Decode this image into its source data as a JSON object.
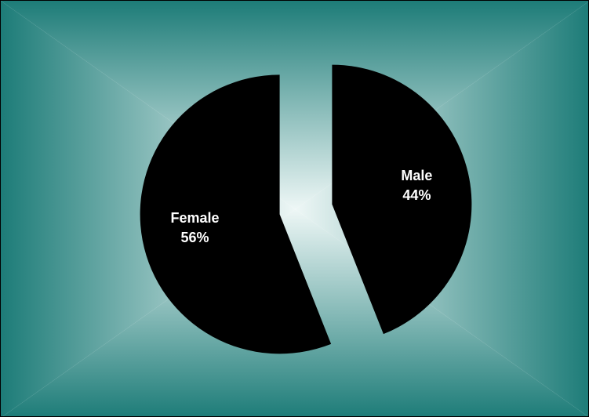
{
  "chart_data": {
    "type": "pie",
    "exploded": true,
    "start": "12 o'clock",
    "direction": "clockwise",
    "slices": [
      {
        "label": "Male",
        "value": 44,
        "value_label": "44%",
        "color": "#000000"
      },
      {
        "label": "Female",
        "value": 56,
        "value_label": "56%",
        "color": "#000000"
      }
    ],
    "label_color": "#ffffff",
    "legend": "none",
    "background": {
      "style": "rectangular radial gradient",
      "center_color": "#eef7f6",
      "edge_color": "#1d7c78"
    }
  }
}
